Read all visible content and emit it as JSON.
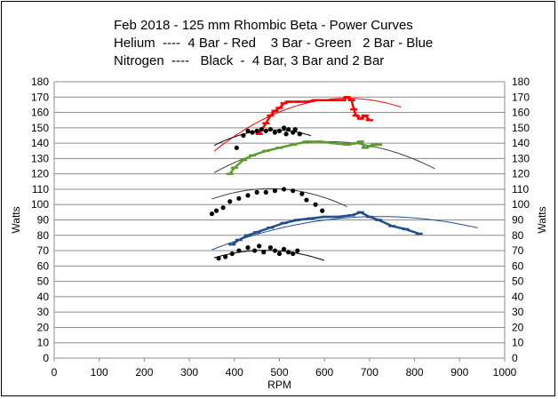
{
  "chart_data": {
    "type": "scatter",
    "title_lines": [
      "Feb 2018 - 125 mm Rhombic Beta - Power Curves",
      "Helium  ----  4 Bar - Red    3 Bar - Green   2 Bar - Blue",
      "Nitrogen  ----   Black  -  4 Bar, 3 Bar and 2 Bar"
    ],
    "xlabel": "RPM",
    "ylabel": "Watts",
    "ylabel_right": "Watts",
    "xlim": [
      0,
      1000
    ],
    "ylim": [
      0,
      180
    ],
    "x_ticks": [
      "0",
      "100",
      "200",
      "300",
      "400",
      "500",
      "600",
      "700",
      "800",
      "900",
      "1000"
    ],
    "y_ticks": [
      "0",
      "10",
      "20",
      "30",
      "40",
      "50",
      "60",
      "70",
      "80",
      "90",
      "100",
      "110",
      "120",
      "130",
      "140",
      "150",
      "160",
      "170",
      "180"
    ],
    "grid": "horizontal",
    "legend": "none",
    "series": [
      {
        "color": "#ff0000",
        "marker": "dash",
        "points": [
          [
            455,
            146
          ],
          [
            470,
            153
          ],
          [
            480,
            158
          ],
          [
            490,
            161
          ],
          [
            500,
            163
          ],
          [
            510,
            166
          ],
          [
            520,
            167
          ],
          [
            540,
            167
          ],
          [
            560,
            167
          ],
          [
            580,
            168
          ],
          [
            600,
            168
          ],
          [
            620,
            168
          ],
          [
            640,
            168
          ],
          [
            650,
            170
          ],
          [
            660,
            168
          ],
          [
            665,
            162
          ],
          [
            670,
            158
          ],
          [
            680,
            156
          ],
          [
            690,
            158
          ],
          [
            700,
            155
          ]
        ],
        "fit": {
          "coeffs": [
            -0.000397,
            0.5158,
            1.7
          ],
          "x_range": [
            355,
            770
          ],
          "color": "#ff0000"
        }
      },
      {
        "color": "#5a9c2e",
        "marker": "dash",
        "points": [
          [
            390,
            120
          ],
          [
            400,
            124
          ],
          [
            420,
            129
          ],
          [
            440,
            132
          ],
          [
            470,
            135
          ],
          [
            500,
            137
          ],
          [
            530,
            139
          ],
          [
            560,
            141
          ],
          [
            590,
            141
          ],
          [
            620,
            140
          ],
          [
            650,
            139
          ],
          [
            670,
            140
          ],
          [
            680,
            141
          ],
          [
            690,
            137
          ],
          [
            700,
            138
          ],
          [
            710,
            139
          ],
          [
            720,
            139
          ]
        ],
        "fit": {
          "coeffs": [
            -0.000315,
            0.3833,
            24.4
          ],
          "x_range": [
            355,
            845
          ],
          "color": "#404030"
        }
      },
      {
        "color": "#1f4e8c",
        "marker": "dash",
        "points": [
          [
            395,
            74
          ],
          [
            410,
            77
          ],
          [
            430,
            80
          ],
          [
            450,
            82
          ],
          [
            480,
            85
          ],
          [
            510,
            88
          ],
          [
            540,
            90
          ],
          [
            570,
            91
          ],
          [
            600,
            92
          ],
          [
            630,
            92
          ],
          [
            660,
            93
          ],
          [
            680,
            95
          ],
          [
            700,
            92
          ],
          [
            720,
            90
          ],
          [
            750,
            86
          ],
          [
            780,
            84
          ],
          [
            810,
            81
          ]
        ],
        "fit": {
          "coeffs": [
            -0.000156,
            0.2254,
            10.8
          ],
          "x_range": [
            350,
            940
          ],
          "color": "#1f4e8c"
        }
      },
      {
        "color": "#000000",
        "marker": "dot",
        "points": [
          [
            405,
            137
          ],
          [
            420,
            145
          ],
          [
            430,
            148
          ],
          [
            440,
            147
          ],
          [
            450,
            148
          ],
          [
            460,
            149
          ],
          [
            470,
            148
          ],
          [
            480,
            149
          ],
          [
            490,
            147
          ],
          [
            500,
            148
          ],
          [
            510,
            150
          ],
          [
            515,
            146
          ],
          [
            520,
            149
          ],
          [
            530,
            147
          ],
          [
            535,
            149
          ],
          [
            545,
            146
          ]
        ],
        "fit": {
          "coeffs": [
            -0.00056,
            0.5476,
            14.7
          ],
          "x_range": [
            355,
            570
          ],
          "color": "#000000"
        }
      },
      {
        "color": "#000000",
        "marker": "dot",
        "points": [
          [
            350,
            94
          ],
          [
            360,
            96
          ],
          [
            375,
            98
          ],
          [
            390,
            102
          ],
          [
            410,
            104
          ],
          [
            430,
            106
          ],
          [
            450,
            108
          ],
          [
            470,
            108
          ],
          [
            490,
            109
          ],
          [
            510,
            110
          ],
          [
            530,
            109
          ],
          [
            550,
            107
          ],
          [
            560,
            103
          ],
          [
            580,
            100
          ],
          [
            595,
            96
          ]
        ],
        "fit": {
          "coeffs": [
            -0.000403,
            0.3867,
            17.6
          ],
          "x_range": [
            350,
            650
          ],
          "color": "#404030"
        }
      },
      {
        "color": "#000000",
        "marker": "dot",
        "points": [
          [
            365,
            65
          ],
          [
            380,
            66
          ],
          [
            395,
            68
          ],
          [
            410,
            70
          ],
          [
            430,
            72
          ],
          [
            445,
            70
          ],
          [
            455,
            73
          ],
          [
            465,
            69
          ],
          [
            480,
            72
          ],
          [
            490,
            70
          ],
          [
            500,
            68
          ],
          [
            510,
            71
          ],
          [
            520,
            69
          ],
          [
            530,
            68
          ],
          [
            540,
            70
          ]
        ],
        "fit": {
          "coeffs": [
            -0.000385,
            0.3604,
            -14.1
          ],
          "x_range": [
            355,
            600
          ],
          "color": "#000000"
        }
      }
    ]
  }
}
